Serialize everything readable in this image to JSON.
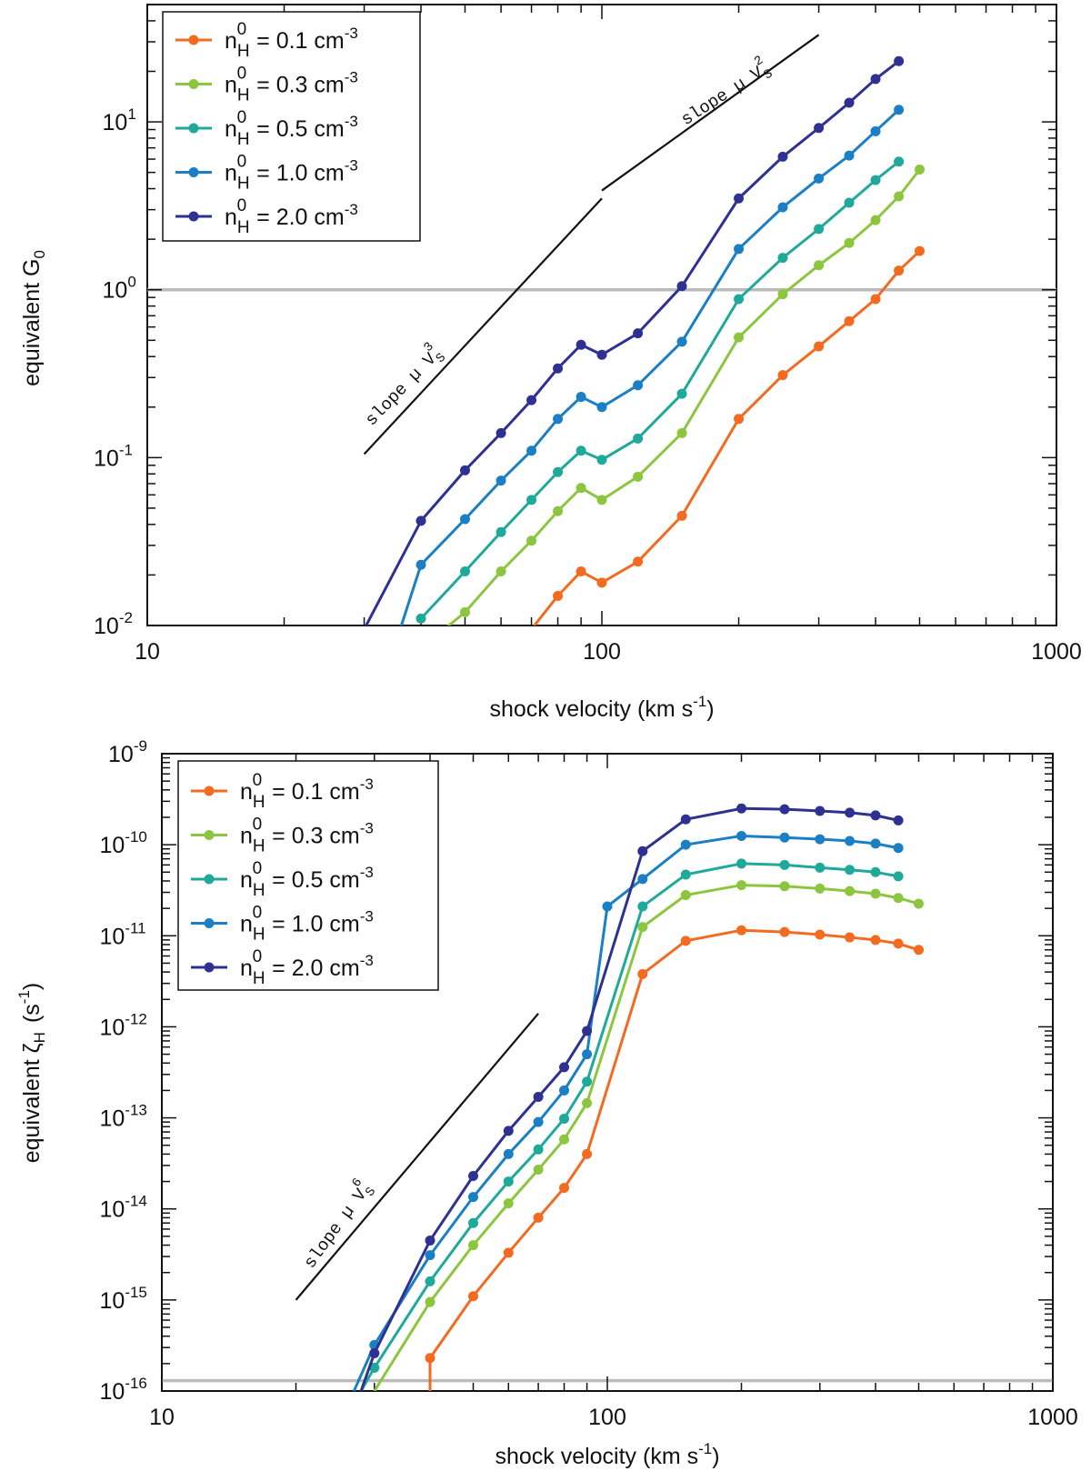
{
  "chart_data": [
    {
      "type": "line",
      "xscale": "log",
      "yscale": "log",
      "xlim": [
        10,
        1000
      ],
      "ylim": [
        0.01,
        50
      ],
      "xlabel": "shock velocity (km s",
      "xlabel_sup": "-1",
      "xlabel_close": ")",
      "ylabel_main": "equivalent G",
      "ylabel_sub": "0",
      "x_ticks": [
        {
          "value": 10,
          "label": "10"
        },
        {
          "value": 100,
          "label": "100"
        },
        {
          "value": 1000,
          "label": "1000"
        }
      ],
      "y_ticks": [
        {
          "value": 0.01,
          "base": "10",
          "exp": "-2"
        },
        {
          "value": 0.1,
          "base": "10",
          "exp": "-1"
        },
        {
          "value": 1,
          "base": "10",
          "exp": "0"
        },
        {
          "value": 10,
          "base": "10",
          "exp": "1"
        }
      ],
      "reference_line": {
        "y": 1,
        "color": "#bbbbbb"
      },
      "legend_position": "top-left",
      "series": [
        {
          "name": "n_H^0 = 0.1 cm^-3",
          "legend_value": "= 0.1 cm",
          "color": "#f26b21",
          "x": [
            70,
            80,
            90,
            100,
            120,
            150,
            200,
            250,
            300,
            350,
            400,
            450,
            500
          ],
          "y": [
            0.0095,
            0.015,
            0.021,
            0.018,
            0.024,
            0.045,
            0.17,
            0.31,
            0.46,
            0.65,
            0.88,
            1.3,
            1.7
          ]
        },
        {
          "name": "n_H^0 = 0.3 cm^-3",
          "legend_value": "= 0.3 cm",
          "color": "#8cc63f",
          "x": [
            45,
            50,
            60,
            70,
            80,
            90,
            100,
            120,
            150,
            200,
            250,
            300,
            350,
            400,
            450,
            500
          ],
          "y": [
            0.0095,
            0.012,
            0.021,
            0.032,
            0.048,
            0.066,
            0.056,
            0.077,
            0.14,
            0.52,
            0.94,
            1.4,
            1.9,
            2.6,
            3.6,
            5.2
          ]
        },
        {
          "name": "n_H^0 = 0.5 cm^-3",
          "legend_value": "= 0.5 cm",
          "color": "#1fa99a",
          "x": [
            40,
            50,
            60,
            70,
            80,
            90,
            100,
            120,
            150,
            200,
            250,
            300,
            350,
            400,
            450
          ],
          "y": [
            0.011,
            0.021,
            0.036,
            0.056,
            0.082,
            0.11,
            0.097,
            0.13,
            0.24,
            0.88,
            1.55,
            2.3,
            3.3,
            4.5,
            5.8
          ]
        },
        {
          "name": "n_H^0 = 1.0 cm^-3",
          "legend_value": "= 1.0 cm",
          "color": "#1a7fc4",
          "x": [
            36,
            40,
            50,
            60,
            70,
            80,
            90,
            100,
            120,
            150,
            200,
            250,
            300,
            350,
            400,
            450
          ],
          "y": [
            0.0095,
            0.023,
            0.043,
            0.073,
            0.11,
            0.17,
            0.23,
            0.2,
            0.27,
            0.49,
            1.75,
            3.1,
            4.6,
            6.3,
            8.8,
            11.8
          ]
        },
        {
          "name": "n_H^0 = 2.0 cm^-3",
          "legend_value": "= 2.0 cm",
          "color": "#2e3192",
          "x": [
            30,
            40,
            50,
            60,
            70,
            80,
            90,
            100,
            120,
            150,
            200,
            250,
            300,
            350,
            400,
            450
          ],
          "y": [
            0.0095,
            0.042,
            0.084,
            0.14,
            0.22,
            0.34,
            0.47,
            0.41,
            0.55,
            1.05,
            3.5,
            6.2,
            9.2,
            13,
            18,
            23
          ]
        }
      ],
      "guide_lines": [
        {
          "x": [
            30,
            100
          ],
          "y": [
            0.105,
            3.5
          ]
        },
        {
          "x": [
            100,
            300
          ],
          "y": [
            3.9,
            33
          ]
        }
      ],
      "annotations": [
        {
          "text": "slope µ V",
          "sub": "S",
          "sup": "3"
        },
        {
          "text": "slope µ V",
          "sub": "S",
          "sup": "2"
        }
      ]
    },
    {
      "type": "line",
      "xscale": "log",
      "yscale": "log",
      "xlim": [
        10,
        1000
      ],
      "ylim": [
        1e-16,
        1e-09
      ],
      "xlabel": "shock velocity (km s",
      "xlabel_sup": "-1",
      "xlabel_close": ")",
      "ylabel_main": "equivalent ζ",
      "ylabel_sub": "H",
      "ylabel_unit": "(s",
      "ylabel_unit_sup": "-1",
      "ylabel_unit_close": ")",
      "x_ticks": [
        {
          "value": 10,
          "label": "10"
        },
        {
          "value": 100,
          "label": "100"
        },
        {
          "value": 1000,
          "label": "1000"
        }
      ],
      "y_ticks": [
        {
          "value": 1e-16,
          "base": "10",
          "exp": "-16"
        },
        {
          "value": 1e-15,
          "base": "10",
          "exp": "-15"
        },
        {
          "value": 1e-14,
          "base": "10",
          "exp": "-14"
        },
        {
          "value": 1e-13,
          "base": "10",
          "exp": "-13"
        },
        {
          "value": 1e-12,
          "base": "10",
          "exp": "-12"
        },
        {
          "value": 1e-11,
          "base": "10",
          "exp": "-11"
        },
        {
          "value": 1e-10,
          "base": "10",
          "exp": "-10"
        },
        {
          "value": 1e-09,
          "base": "10",
          "exp": "-9"
        }
      ],
      "reference_line": {
        "y": 1.3e-16,
        "color": "#bbbbbb"
      },
      "legend_position": "top-left",
      "series": [
        {
          "name": "n_H^0 = 0.1 cm^-3",
          "legend_value": "= 0.1 cm",
          "color": "#f26b21",
          "x": [
            40,
            40,
            50,
            60,
            70,
            80,
            90,
            120,
            150,
            200,
            250,
            300,
            350,
            400,
            450,
            500
          ],
          "y": [
            1e-16,
            2.3e-16,
            1.1e-15,
            3.3e-15,
            8e-15,
            1.7e-14,
            4e-14,
            3.8e-12,
            8.8e-12,
            1.15e-11,
            1.1e-11,
            1.03e-11,
            9.6e-12,
            9e-12,
            8.2e-12,
            7e-12
          ]
        },
        {
          "name": "n_H^0 = 0.3 cm^-3",
          "legend_value": "= 0.3 cm",
          "color": "#8cc63f",
          "x": [
            30,
            40,
            50,
            60,
            70,
            80,
            90,
            120,
            150,
            200,
            250,
            300,
            350,
            400,
            450,
            500
          ],
          "y": [
            1e-16,
            9.5e-16,
            4e-15,
            1.15e-14,
            2.7e-14,
            5.8e-14,
            1.45e-13,
            1.25e-11,
            2.8e-11,
            3.6e-11,
            3.5e-11,
            3.3e-11,
            3.1e-11,
            2.9e-11,
            2.6e-11,
            2.25e-11
          ]
        },
        {
          "name": "n_H^0 = 0.5 cm^-3",
          "legend_value": "= 0.5 cm",
          "color": "#1fa99a",
          "x": [
            28,
            30,
            40,
            50,
            60,
            70,
            80,
            90,
            120,
            150,
            200,
            250,
            300,
            350,
            400,
            450
          ],
          "y": [
            1e-16,
            1.8e-16,
            1.6e-15,
            7e-15,
            2e-14,
            4.5e-14,
            9.8e-14,
            2.5e-13,
            2.1e-11,
            4.7e-11,
            6.2e-11,
            6e-11,
            5.6e-11,
            5.3e-11,
            5e-11,
            4.5e-11
          ]
        },
        {
          "name": "n_H^0 = 1.0 cm^-3",
          "legend_value": "= 1.0 cm",
          "color": "#1a7fc4",
          "x": [
            27,
            30,
            40,
            50,
            60,
            70,
            80,
            90,
            100,
            120,
            150,
            200,
            250,
            300,
            350,
            400,
            450
          ],
          "y": [
            1e-16,
            3.2e-16,
            3.1e-15,
            1.35e-14,
            4e-14,
            9e-14,
            2e-13,
            5e-13,
            2.1e-11,
            4.2e-11,
            1e-10,
            1.25e-10,
            1.2e-10,
            1.15e-10,
            1.1e-10,
            1.03e-10,
            9.2e-11
          ]
        },
        {
          "name": "n_H^0 = 2.0 cm^-3",
          "legend_value": "= 2.0 cm",
          "color": "#2e3192",
          "x": [
            28,
            30,
            40,
            50,
            60,
            70,
            80,
            90,
            120,
            150,
            200,
            250,
            300,
            350,
            400,
            450
          ],
          "y": [
            1e-16,
            2.6e-16,
            4.5e-15,
            2.3e-14,
            7.2e-14,
            1.7e-13,
            3.6e-13,
            9e-13,
            8.5e-11,
            1.9e-10,
            2.5e-10,
            2.45e-10,
            2.35e-10,
            2.25e-10,
            2.1e-10,
            1.85e-10
          ]
        }
      ],
      "guide_lines": [
        {
          "x": [
            20,
            70
          ],
          "y": [
            1e-15,
            1.4e-12
          ]
        }
      ],
      "annotations": [
        {
          "text": "slope µ V",
          "sub": "S",
          "sup": "6"
        }
      ]
    }
  ],
  "legend_labels": {
    "n": "n",
    "sub": "H",
    "sup": "0",
    "unit_sup": "-3"
  }
}
